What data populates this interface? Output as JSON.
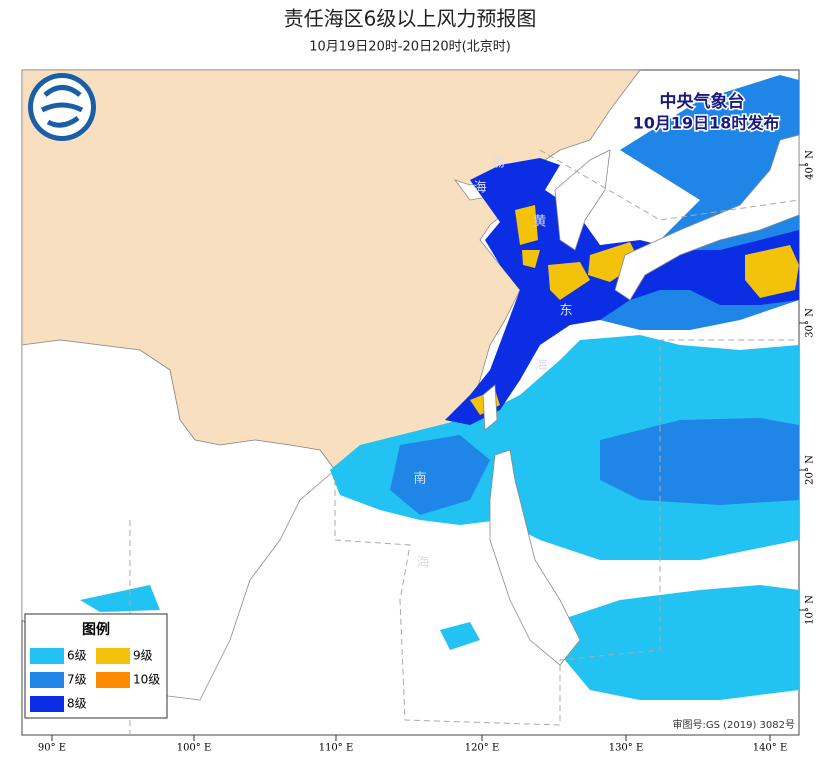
{
  "header": {
    "title": "责任海区6级以上风力预报图",
    "subtitle": "10月19日20时-20日20时(北京时)"
  },
  "issuer": {
    "name": "中央气象台",
    "time": "10月19日18时发布"
  },
  "legend": {
    "title": "图例",
    "items": [
      {
        "label": "6级",
        "color": "#22c3f3"
      },
      {
        "label": "7级",
        "color": "#1f86e8"
      },
      {
        "label": "8级",
        "color": "#0b2de4"
      },
      {
        "label": "9级",
        "color": "#f3c20a"
      },
      {
        "label": "10级",
        "color": "#fb8c00"
      }
    ]
  },
  "sea_labels": [
    "渤",
    "海",
    "黄",
    "东",
    "海",
    "南",
    "海"
  ],
  "axes": {
    "lon_labels": [
      "90° E",
      "100° E",
      "110° E",
      "120° E",
      "130° E",
      "140° E"
    ],
    "lat_labels": [
      "40° N",
      "30° N",
      "20° N",
      "10° N"
    ]
  },
  "approval": "审图号:GS (2019) 3082号"
}
